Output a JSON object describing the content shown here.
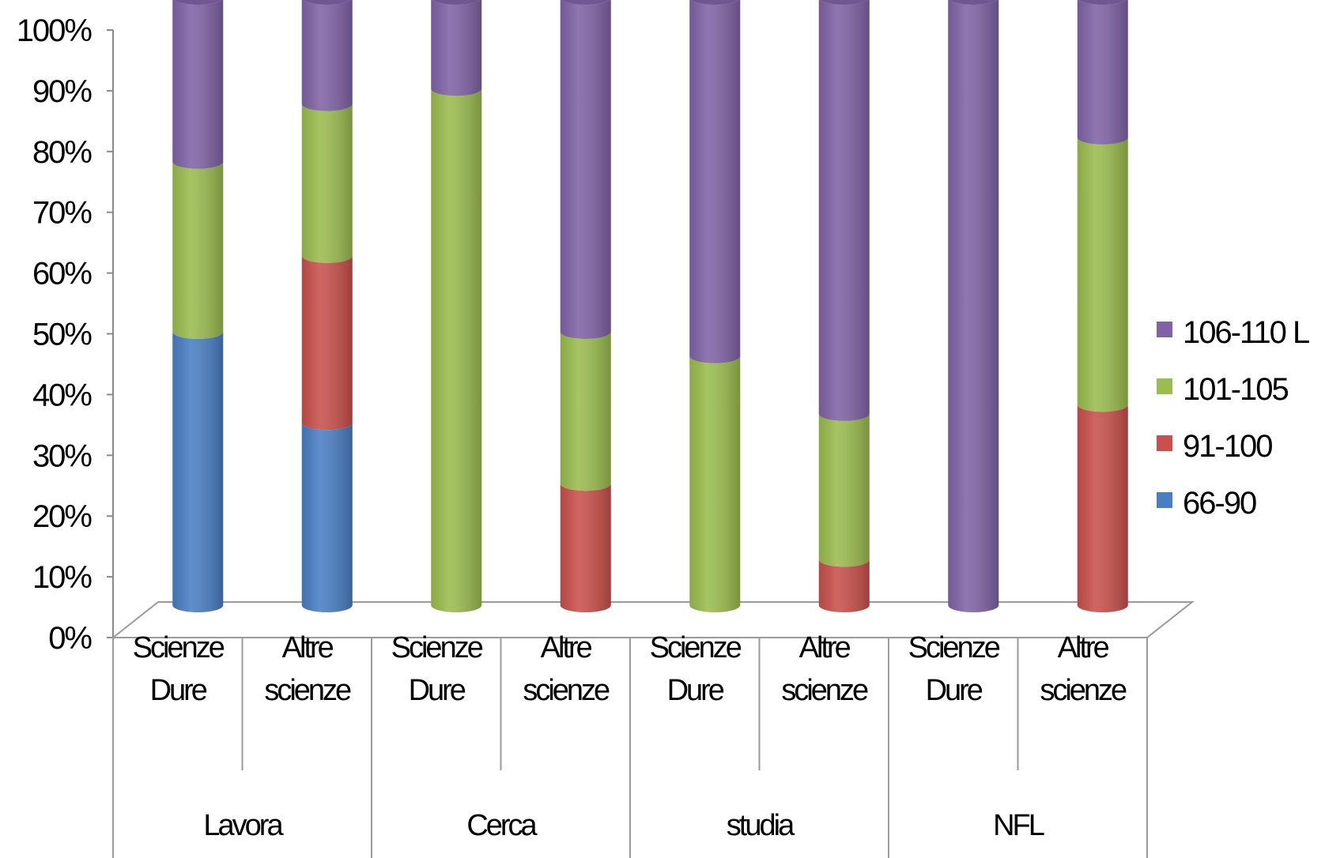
{
  "chart_data": {
    "type": "bar",
    "stacked": "percent",
    "style": "3d-cylinder",
    "categories": [
      {
        "group": "Lavora",
        "line1": "Scienze",
        "line2": "Dure"
      },
      {
        "group": "Lavora",
        "line1": "Altre",
        "line2": "scienze"
      },
      {
        "group": "Cerca",
        "line1": "Scienze",
        "line2": "Dure"
      },
      {
        "group": "Cerca",
        "line1": "Altre",
        "line2": "scienze"
      },
      {
        "group": "studia",
        "line1": "Scienze",
        "line2": "Dure"
      },
      {
        "group": "studia",
        "line1": "Altre",
        "line2": "scienze"
      },
      {
        "group": "NFL",
        "line1": "Scienze",
        "line2": "Dure"
      },
      {
        "group": "NFL",
        "line1": "Altre",
        "line2": "scienze"
      }
    ],
    "groups": [
      "Lavora",
      "Cerca",
      "studia",
      "NFL"
    ],
    "series": [
      {
        "name": "66-90",
        "color": "#4a7ec4",
        "values": [
          45,
          30,
          0,
          0,
          0,
          0,
          0,
          0
        ]
      },
      {
        "name": "91-100",
        "color": "#c9504c",
        "values": [
          0,
          27.5,
          0,
          20,
          0,
          7.5,
          0,
          33
        ]
      },
      {
        "name": "101-105",
        "color": "#9bbc4f",
        "values": [
          28,
          25,
          85,
          25,
          41,
          24,
          0,
          44
        ]
      },
      {
        "name": "106-110 L",
        "color": "#8063a6",
        "values": [
          27,
          17.5,
          15,
          55,
          59,
          68.5,
          100,
          23
        ]
      }
    ],
    "yticks": [
      "0%",
      "10%",
      "20%",
      "30%",
      "40%",
      "50%",
      "60%",
      "70%",
      "80%",
      "90%",
      "100%"
    ],
    "ylim": [
      0,
      100
    ],
    "legend_position": "right",
    "grid": false
  }
}
